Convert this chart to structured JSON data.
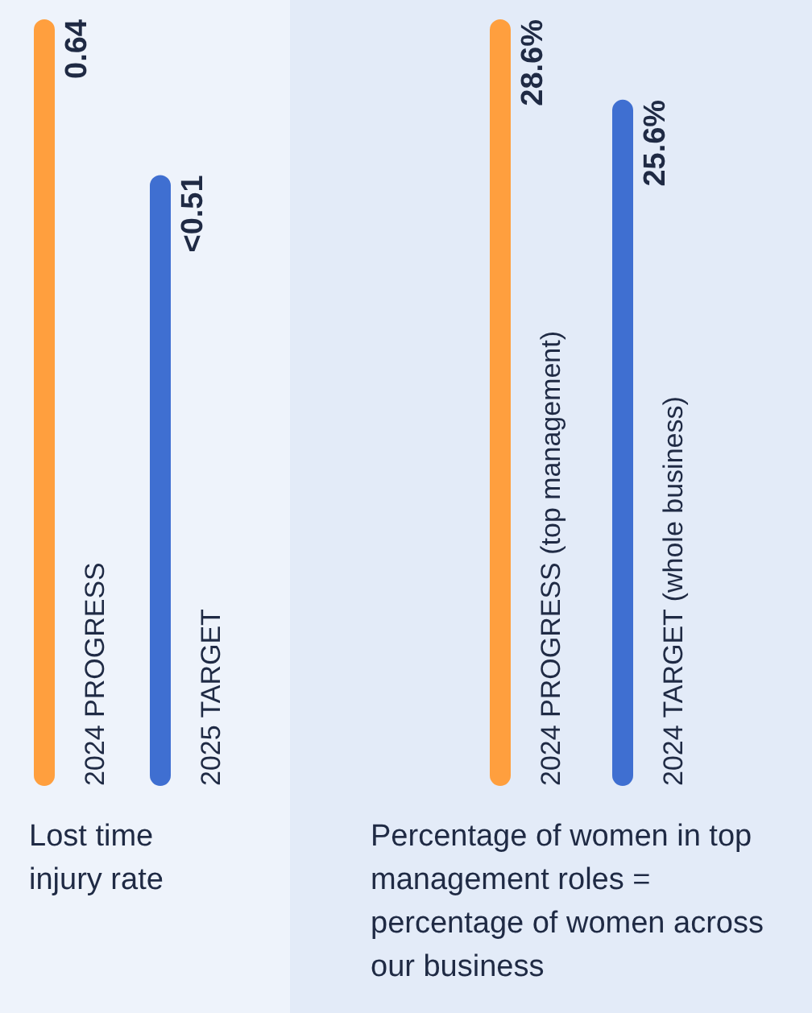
{
  "chart_data": [
    {
      "type": "bar",
      "title": "Lost time injury rate",
      "categories": [
        "2024 PROGRESS",
        "2025 TARGET"
      ],
      "values": [
        0.64,
        0.51
      ],
      "colors": [
        "#ff9f3e",
        "#3f6fd1"
      ],
      "value_labels": [
        "0.64",
        "<0.51"
      ]
    },
    {
      "type": "bar",
      "title": "Percentage of women in top management roles = percentage of women across our business",
      "categories": [
        "2024 PROGRESS  (top management)",
        "2024 TARGET  (whole business)"
      ],
      "values": [
        28.6,
        25.6
      ],
      "colors": [
        "#ff9f3e",
        "#3f6fd1"
      ],
      "value_labels": [
        "28.6%",
        "25.6%"
      ]
    }
  ]
}
